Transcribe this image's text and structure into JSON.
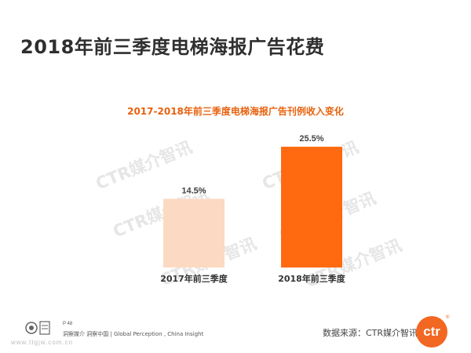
{
  "page": {
    "title": "2018年前三季度电梯海报广告花费"
  },
  "chart_data": {
    "type": "bar",
    "title": "2017-2018年前三季度电梯海报广告刊例收入变化",
    "categories": [
      "2017年前三季度",
      "2018年前三季度"
    ],
    "values": [
      14.5,
      25.5
    ],
    "data_labels": [
      "14.5%",
      "25.5%"
    ],
    "colors": [
      "#fcd9c2",
      "#ff6a10"
    ],
    "ylim": [
      0,
      27
    ],
    "grid": false
  },
  "watermark": {
    "text": "CTR媒介智讯"
  },
  "footer": {
    "page_number": "P 48",
    "tagline": "洞察媒介 洞察中国 | Global Perception , China Insight",
    "url": "www.ttgjw.com.cn",
    "source": "数据来源：CTR媒介智讯",
    "logo_text": "ctr",
    "logo_reg": "®"
  },
  "colors": {
    "accent": "#e8620f",
    "bar_2017": "#fcd9c2",
    "bar_2018": "#ff6a10",
    "title_text": "#2f2f2f"
  }
}
